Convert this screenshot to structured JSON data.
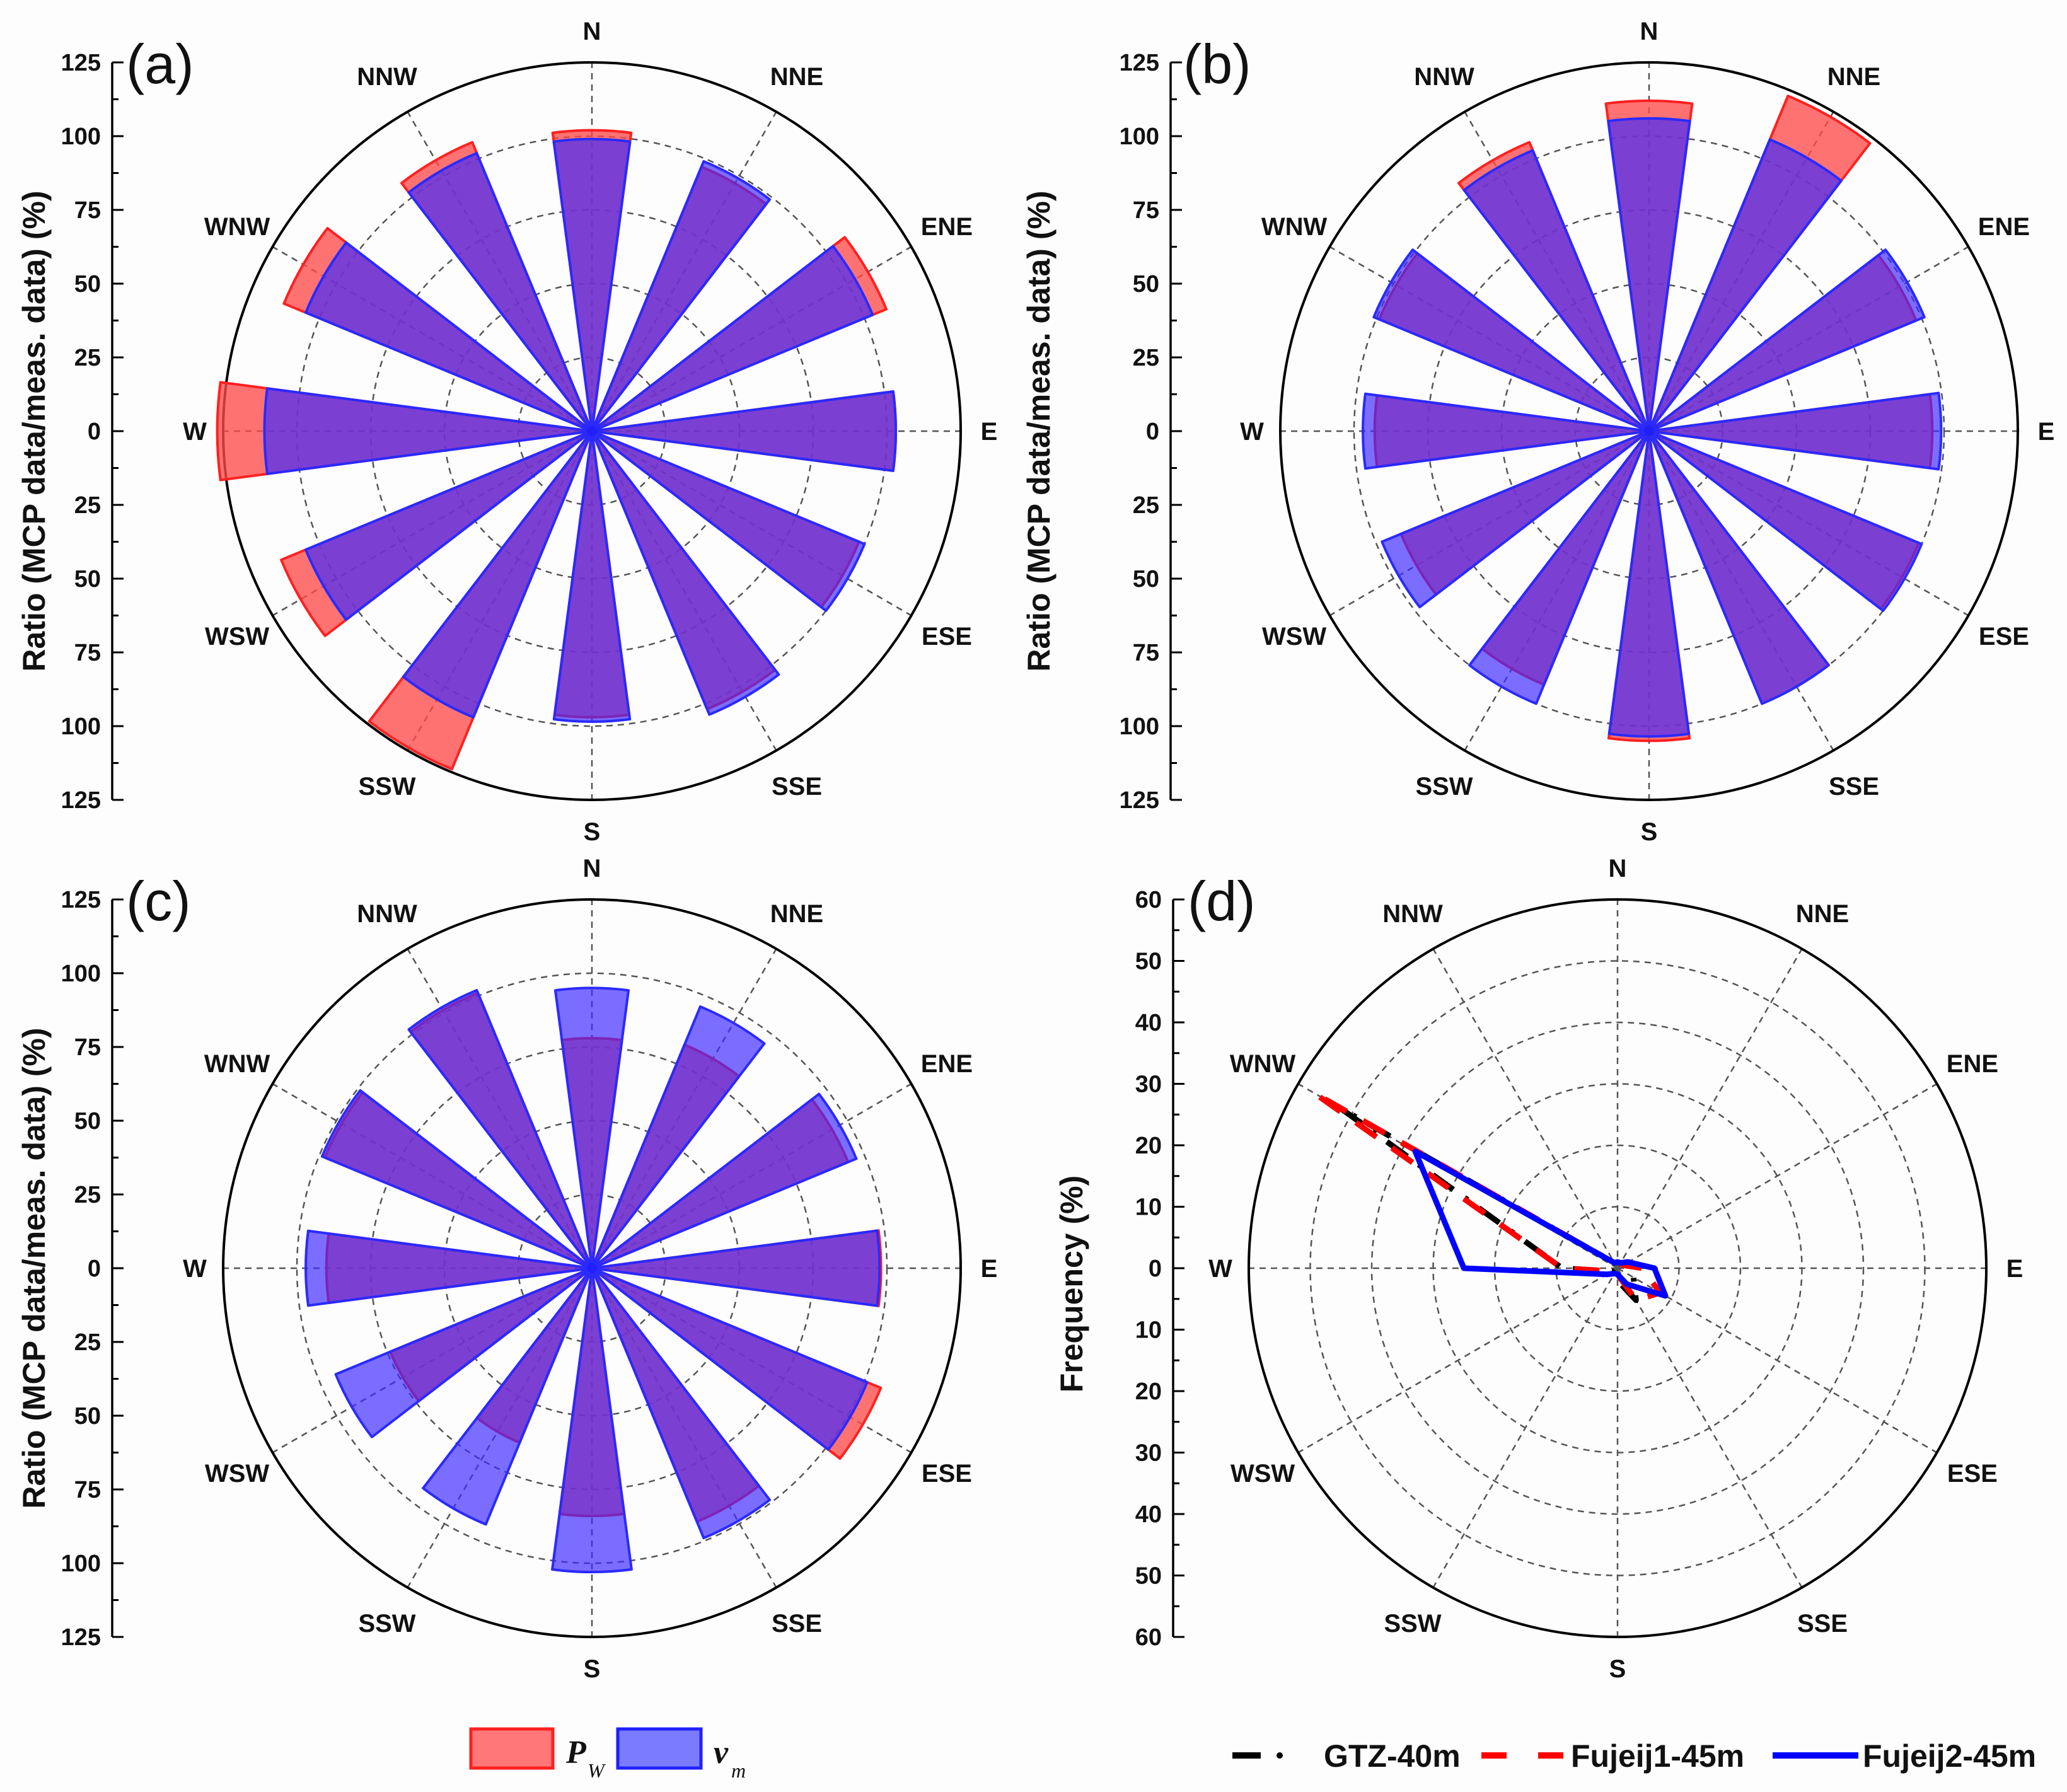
{
  "colors": {
    "pw": "#ff4a4a",
    "vm": "#3c3cff",
    "purple": "#6a2fc0",
    "gtz": "#000000",
    "fujeij1": "#ff0000",
    "fujeij2": "#0000ff"
  },
  "legend_bars": {
    "pw_main": "P",
    "pw_sub": "W",
    "vm_main": "v",
    "vm_sub": "m"
  },
  "legend_lines": [
    "GTZ-40m",
    "Fujeij1-45m",
    "Fujeij2-45m"
  ],
  "chart_data": [
    {
      "panel": "(a)",
      "type": "bar",
      "subtype": "polar",
      "ylabel": "Ratio (MCP data/meas. data)  (%)",
      "rlim": [
        0,
        125
      ],
      "tick_labels": [
        "125",
        "100",
        "75",
        "50",
        "25",
        "0",
        "25",
        "50",
        "75",
        "100",
        "125"
      ],
      "directions": [
        "N",
        "NNE",
        "ENE",
        "E",
        "ESE",
        "SSE",
        "S",
        "SSW",
        "WSW",
        "W",
        "WNW",
        "NNW"
      ],
      "angles_deg": [
        0,
        30,
        60,
        90,
        120,
        150,
        180,
        210,
        240,
        270,
        300,
        330
      ],
      "series": [
        {
          "name": "P_W",
          "values": [
            102,
            97,
            108,
            103,
            98,
            102,
            97,
            124,
            114,
            127,
            113,
            106
          ]
        },
        {
          "name": "v_m",
          "values": [
            99,
            99,
            103,
            103,
            100,
            104,
            98.5,
            105,
            105,
            111,
            105,
            102
          ]
        }
      ],
      "grid": true
    },
    {
      "panel": "(b)",
      "type": "bar",
      "subtype": "polar",
      "ylabel": "Ratio (MCP data/meas. data)  (%)",
      "rlim": [
        0,
        125
      ],
      "tick_labels": [
        "125",
        "100",
        "75",
        "50",
        "25",
        "0",
        "25",
        "50",
        "75",
        "100",
        "125"
      ],
      "directions": [
        "N",
        "NNE",
        "ENE",
        "E",
        "ESE",
        "SSE",
        "S",
        "SSW",
        "WSW",
        "W",
        "WNW",
        "NNW"
      ],
      "angles_deg": [
        0,
        30,
        60,
        90,
        120,
        150,
        180,
        210,
        240,
        270,
        300,
        330
      ],
      "series": [
        {
          "name": "P_W",
          "values": [
            112,
            123,
            98,
            96,
            99,
            100,
            105,
            93,
            91,
            93,
            99,
            106
          ]
        },
        {
          "name": "v_m",
          "values": [
            106,
            107,
            101,
            99,
            100,
            100,
            103.5,
            100,
            98,
            97,
            101,
            103
          ]
        }
      ],
      "grid": true
    },
    {
      "panel": "(c)",
      "type": "bar",
      "subtype": "polar",
      "ylabel": "Ratio (MCP data/meas. data)  (%)",
      "rlim": [
        0,
        125
      ],
      "tick_labels": [
        "125",
        "100",
        "75",
        "50",
        "25",
        "0",
        "25",
        "50",
        "75",
        "100",
        "125"
      ],
      "directions": [
        "N",
        "NNE",
        "ENE",
        "E",
        "ESE",
        "SSE",
        "S",
        "SSW",
        "WSW",
        "W",
        "WNW",
        "NNW"
      ],
      "angles_deg": [
        0,
        30,
        60,
        90,
        120,
        150,
        180,
        210,
        240,
        270,
        300,
        330
      ],
      "series": [
        {
          "name": "P_W",
          "values": [
            78,
            82,
            94,
            98,
            106,
            93,
            84,
            64,
            74,
            90,
            98,
            101
          ]
        },
        {
          "name": "v_m",
          "values": [
            95,
            96,
            97,
            97.5,
            101,
            99,
            103,
            94,
            94,
            97,
            99,
            102
          ]
        }
      ],
      "grid": true
    },
    {
      "panel": "(d)",
      "type": "line",
      "subtype": "polar",
      "ylabel": "Frequency (%)",
      "rlim": [
        0,
        60
      ],
      "tick_labels": [
        "60",
        "50",
        "40",
        "30",
        "20",
        "10",
        "0",
        "10",
        "20",
        "30",
        "40",
        "50",
        "60"
      ],
      "directions": [
        "N",
        "NNE",
        "ENE",
        "E",
        "ESE",
        "SSE",
        "S",
        "SSW",
        "WSW",
        "W",
        "WNW",
        "NNW"
      ],
      "angles_deg": [
        0,
        30,
        60,
        90,
        120,
        150,
        180,
        210,
        240,
        270,
        300,
        330
      ],
      "series": [
        {
          "name": "GTZ-40m",
          "style": "dash-dot",
          "values": [
            1,
            1,
            2,
            4,
            3,
            6,
            2,
            1,
            1,
            9,
            52,
            1
          ]
        },
        {
          "name": "Fujeij1-45m",
          "style": "dashed",
          "values": [
            1,
            1,
            1,
            4,
            8,
            6,
            1,
            1,
            1,
            9,
            57,
            1
          ]
        },
        {
          "name": "Fujeij2-45m",
          "style": "solid",
          "values": [
            1,
            1,
            2,
            6,
            9,
            3,
            1,
            1,
            2,
            25,
            38,
            1
          ]
        }
      ],
      "grid": true
    }
  ]
}
